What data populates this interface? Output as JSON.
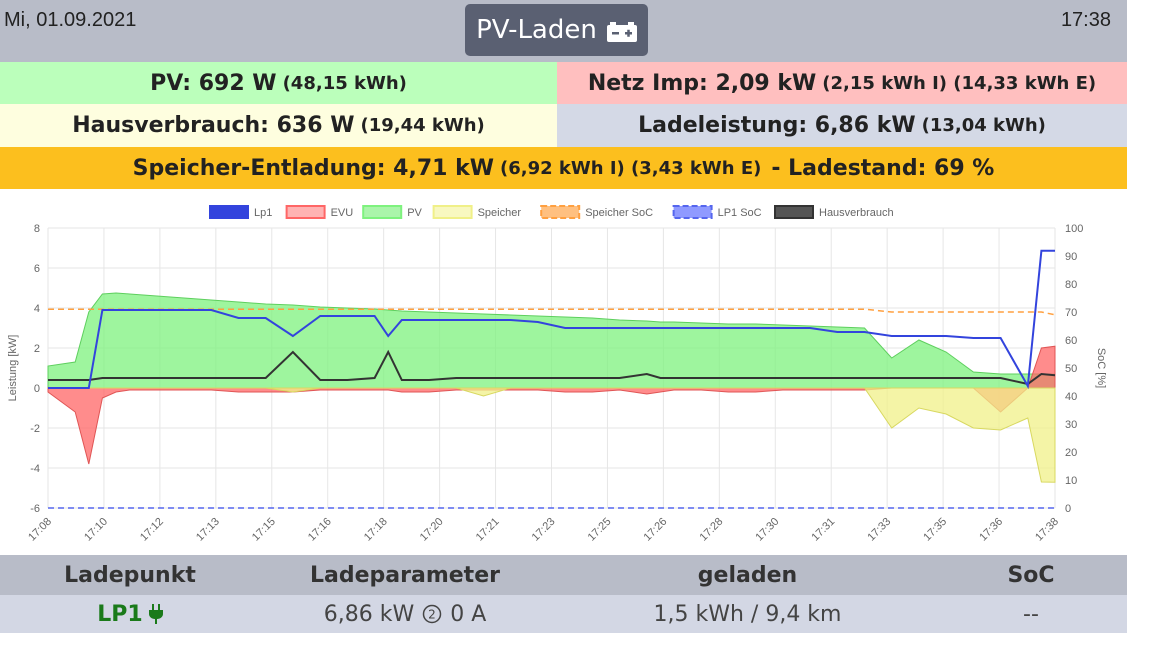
{
  "header": {
    "date": "Mi, 01.09.2021",
    "time": "17:38",
    "mode_label": "PV-Laden",
    "mode_icon": "car-battery-icon"
  },
  "status": {
    "pv": {
      "main": "PV: 692 W",
      "sub": "(48,15 kWh)",
      "color": "#bbffbb"
    },
    "netz": {
      "main": "Netz Imp: 2,09 kW",
      "sub": "(2,15 kWh I) (14,33 kWh E)",
      "color": "#ffbfbf"
    },
    "haus": {
      "main": "Hausverbrauch: 636 W",
      "sub": "(19,44 kWh)",
      "color": "#fefedf"
    },
    "lade": {
      "main": "Ladeleistung: 6,86 kW",
      "sub": "(13,04 kWh)",
      "color": "#d4d9e6"
    },
    "speicher": {
      "main": "Speicher-Entladung: 4,71 kW",
      "sub": "(6,92 kWh I) (3,43 kWh E)",
      "tail": "- Ladestand: 69 %",
      "color": "#fcbf1e"
    }
  },
  "chart_data": {
    "type": "line",
    "legend": [
      "Lp1",
      "EVU",
      "PV",
      "Speicher",
      "Speicher SoC",
      "LP1 SoC",
      "Hausverbrauch"
    ],
    "legend_position": "top",
    "colors": {
      "lp1": "#3344dd",
      "evu": "#ff6666",
      "pv": "#7ef27e",
      "speicher": "#f0f088",
      "speicher_soc": "#ffa040",
      "lp1_soc": "#5566ee",
      "haus": "#333333"
    },
    "x_ticks": [
      "17:08",
      "17:10",
      "17:12",
      "17:13",
      "17:15",
      "17:16",
      "17:18",
      "17:20",
      "17:21",
      "17:23",
      "17:25",
      "17:26",
      "17:28",
      "17:30",
      "17:31",
      "17:33",
      "17:35",
      "17:36",
      "17:38"
    ],
    "ylabel": "Leistung [kW]",
    "ylim": [
      -6,
      8
    ],
    "y_ticks": [
      "8",
      "6",
      "4",
      "2",
      "0",
      "-2",
      "-4",
      "-6"
    ],
    "y2label": "SoC [%]",
    "y2lim": [
      0,
      100
    ],
    "y2_ticks": [
      "100",
      "90",
      "80",
      "70",
      "60",
      "50",
      "40",
      "30",
      "20",
      "10",
      "0"
    ],
    "grid": true,
    "x": [
      0,
      1,
      1.5,
      2,
      2.5,
      3,
      4,
      5,
      6,
      7,
      8,
      9,
      10,
      11,
      12,
      12.5,
      13,
      14,
      15,
      16,
      17,
      18,
      19,
      20,
      21,
      22,
      22.5,
      23,
      24,
      25,
      26,
      27,
      28,
      29,
      30,
      31,
      32,
      33,
      34,
      35,
      36,
      36.5,
      37
    ],
    "series": [
      {
        "name": "PV",
        "values": [
          1.1,
          1.3,
          3.8,
          4.7,
          4.75,
          4.7,
          4.6,
          4.5,
          4.4,
          4.3,
          4.2,
          4.15,
          4.05,
          4.0,
          3.95,
          3.9,
          3.85,
          3.8,
          3.75,
          3.7,
          3.65,
          3.6,
          3.55,
          3.5,
          3.4,
          3.35,
          3.3,
          3.3,
          3.25,
          3.2,
          3.2,
          3.15,
          3.1,
          3.05,
          3.0,
          1.5,
          2.4,
          1.8,
          0.8,
          0.7,
          0.7,
          0.7,
          0.69
        ]
      },
      {
        "name": "EVU",
        "values": [
          -0.2,
          -1.2,
          -3.8,
          -0.5,
          -0.2,
          -0.1,
          -0.1,
          -0.1,
          -0.1,
          -0.2,
          -0.2,
          -0.2,
          -0.1,
          -0.1,
          -0.1,
          -0.1,
          -0.2,
          -0.2,
          -0.1,
          -0.1,
          -0.1,
          -0.1,
          -0.2,
          -0.2,
          -0.1,
          -0.3,
          -0.2,
          -0.1,
          -0.1,
          -0.2,
          -0.2,
          -0.1,
          -0.1,
          -0.1,
          -0.1,
          0,
          0,
          0,
          0,
          -1.2,
          0,
          2.0,
          2.09
        ]
      },
      {
        "name": "Speicher",
        "values": [
          0,
          0,
          0,
          0,
          0,
          0,
          0,
          0,
          0,
          0,
          0,
          -0.2,
          0,
          0,
          0,
          0,
          0,
          0,
          0,
          -0.4,
          0,
          0,
          0,
          0,
          0,
          0,
          0,
          0,
          0,
          0,
          0,
          0,
          0,
          0,
          0,
          -2.0,
          -1.0,
          -1.3,
          -2.0,
          -2.1,
          -1.5,
          -4.7,
          -4.71
        ]
      },
      {
        "name": "Lp1",
        "values": [
          0,
          0,
          0,
          3.9,
          3.9,
          3.9,
          3.9,
          3.9,
          3.9,
          3.5,
          3.5,
          2.6,
          3.6,
          3.6,
          3.6,
          2.6,
          3.4,
          3.4,
          3.4,
          3.4,
          3.4,
          3.3,
          3.0,
          3.0,
          3.0,
          3.0,
          3.0,
          3.0,
          3.0,
          3.0,
          3.0,
          3.0,
          3.0,
          2.8,
          2.8,
          2.6,
          2.6,
          2.6,
          2.5,
          2.5,
          0.1,
          6.86,
          6.86
        ]
      },
      {
        "name": "Hausverbrauch",
        "values": [
          0.4,
          0.4,
          0.4,
          0.5,
          0.5,
          0.5,
          0.5,
          0.5,
          0.5,
          0.5,
          0.5,
          1.8,
          0.4,
          0.4,
          0.5,
          1.8,
          0.4,
          0.4,
          0.5,
          0.5,
          0.5,
          0.5,
          0.5,
          0.5,
          0.5,
          0.7,
          0.5,
          0.5,
          0.5,
          0.5,
          0.5,
          0.5,
          0.5,
          0.5,
          0.5,
          0.5,
          0.5,
          0.5,
          0.5,
          0.5,
          0.2,
          0.7,
          0.64
        ]
      },
      {
        "name": "Speicher SoC",
        "values": [
          71,
          71,
          71,
          71,
          71,
          71,
          71,
          71,
          71,
          71,
          71,
          71,
          71,
          71,
          71,
          71,
          71,
          71,
          71,
          71,
          71,
          71,
          71,
          71,
          71,
          71,
          71,
          71,
          71,
          71,
          71,
          71,
          71,
          71,
          71,
          70,
          70,
          70,
          70,
          70,
          70,
          70,
          69
        ]
      },
      {
        "name": "LP1 SoC",
        "values": [
          0,
          0,
          0,
          0,
          0,
          0,
          0,
          0,
          0,
          0,
          0,
          0,
          0,
          0,
          0,
          0,
          0,
          0,
          0,
          0,
          0,
          0,
          0,
          0,
          0,
          0,
          0,
          0,
          0,
          0,
          0,
          0,
          0,
          0,
          0,
          0,
          0,
          0,
          0,
          0,
          0,
          0,
          0
        ]
      }
    ]
  },
  "table": {
    "headers": [
      "Ladepunkt",
      "Ladeparameter",
      "geladen",
      "SoC"
    ],
    "row": {
      "ladepunkt": "LP1",
      "ladepunkt_color": "#1a7a1a",
      "plug_icon": "plug-icon",
      "param": "6,86 kW",
      "phase_icon": "phase-2-icon",
      "phase_text": "0 A",
      "geladen": "1,5 kWh / 9,4 km",
      "soc": "--"
    }
  }
}
